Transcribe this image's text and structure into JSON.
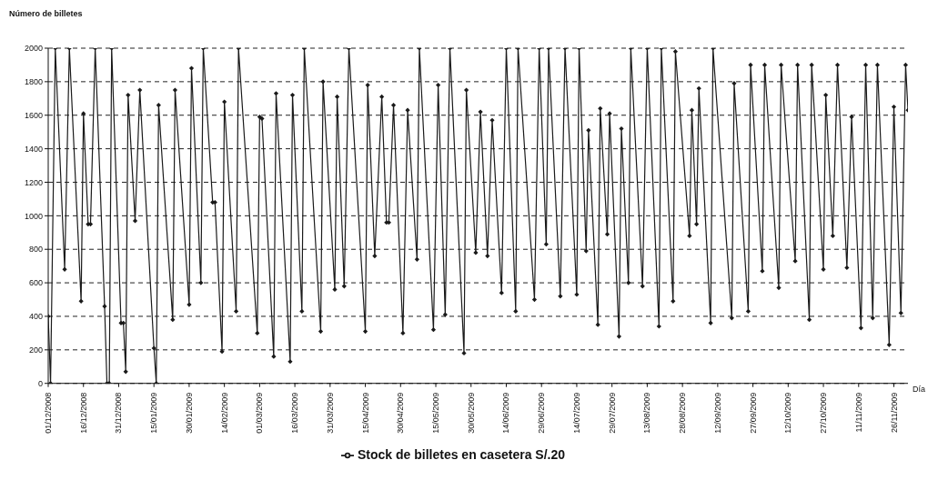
{
  "chart_data": {
    "type": "line",
    "xlabel": "Día",
    "ylabel": "Número de billetes",
    "x": [
      "2008-12-01",
      "2008-12-02",
      "2008-12-04",
      "2008-12-08",
      "2008-12-10",
      "2008-12-15",
      "2008-12-16",
      "2008-12-18",
      "2008-12-19",
      "2008-12-21",
      "2008-12-25",
      "2008-12-26",
      "2008-12-27",
      "2008-12-28",
      "2009-01-01",
      "2009-01-02",
      "2009-01-03",
      "2009-01-04",
      "2009-01-07",
      "2009-01-09",
      "2009-01-15",
      "2009-01-16",
      "2009-01-17",
      "2009-01-23",
      "2009-01-24",
      "2009-01-30",
      "2009-01-31",
      "2009-02-04",
      "2009-02-05",
      "2009-02-09",
      "2009-02-10",
      "2009-02-13",
      "2009-02-14",
      "2009-02-19",
      "2009-02-20",
      "2009-02-28",
      "2009-03-01",
      "2009-03-02",
      "2009-03-07",
      "2009-03-08",
      "2009-03-14",
      "2009-03-15",
      "2009-03-19",
      "2009-03-20",
      "2009-03-27",
      "2009-03-28",
      "2009-04-02",
      "2009-04-03",
      "2009-04-06",
      "2009-04-08",
      "2009-04-15",
      "2009-04-16",
      "2009-04-19",
      "2009-04-22",
      "2009-04-24",
      "2009-04-25",
      "2009-04-27",
      "2009-05-01",
      "2009-05-03",
      "2009-05-07",
      "2009-05-08",
      "2009-05-14",
      "2009-05-16",
      "2009-05-19",
      "2009-05-21",
      "2009-05-27",
      "2009-05-28",
      "2009-06-01",
      "2009-06-03",
      "2009-06-06",
      "2009-06-08",
      "2009-06-12",
      "2009-06-14",
      "2009-06-18",
      "2009-06-19",
      "2009-06-26",
      "2009-06-28",
      "2009-07-01",
      "2009-07-02",
      "2009-07-07",
      "2009-07-09",
      "2009-07-14",
      "2009-07-15",
      "2009-07-18",
      "2009-07-19",
      "2009-07-23",
      "2009-07-24",
      "2009-07-27",
      "2009-07-28",
      "2009-08-01",
      "2009-08-02",
      "2009-08-05",
      "2009-08-06",
      "2009-08-11",
      "2009-08-13",
      "2009-08-18",
      "2009-08-19",
      "2009-08-24",
      "2009-08-25",
      "2009-08-31",
      "2009-09-01",
      "2009-09-03",
      "2009-09-04",
      "2009-09-09",
      "2009-09-10",
      "2009-09-18",
      "2009-09-19",
      "2009-09-25",
      "2009-09-26",
      "2009-10-01",
      "2009-10-02",
      "2009-10-08",
      "2009-10-09",
      "2009-10-15",
      "2009-10-16",
      "2009-10-21",
      "2009-10-22",
      "2009-10-27",
      "2009-10-28",
      "2009-10-31",
      "2009-11-02",
      "2009-11-06",
      "2009-11-08",
      "2009-11-12",
      "2009-11-14",
      "2009-11-17",
      "2009-11-19",
      "2009-11-24",
      "2009-11-26",
      "2009-11-29",
      "2009-12-01",
      "2009-12-02"
    ],
    "series": [
      {
        "name": "Stock de billetes en casetera S/.20",
        "color": "#1a1a1a",
        "values": [
          400,
          0,
          2000,
          680,
          2000,
          490,
          1610,
          950,
          950,
          2000,
          460,
          0,
          0,
          2000,
          360,
          360,
          70,
          1720,
          970,
          1750,
          210,
          0,
          1660,
          380,
          1750,
          470,
          1880,
          600,
          2000,
          1080,
          1080,
          190,
          1680,
          430,
          2000,
          300,
          1590,
          1580,
          160,
          1730,
          130,
          1720,
          430,
          2000,
          310,
          1800,
          560,
          1710,
          580,
          2000,
          310,
          1780,
          760,
          1710,
          960,
          960,
          1660,
          300,
          1630,
          740,
          2000,
          320,
          1780,
          410,
          2000,
          180,
          1750,
          780,
          1620,
          760,
          1570,
          540,
          2000,
          430,
          2000,
          500,
          2000,
          830,
          2000,
          520,
          2000,
          530,
          2000,
          790,
          1510,
          350,
          1640,
          890,
          1610,
          280,
          1520,
          600,
          2000,
          580,
          2000,
          340,
          2000,
          490,
          1980,
          880,
          1630,
          950,
          1760,
          360,
          2000,
          390,
          1790,
          430,
          1900,
          670,
          1900,
          570,
          1900,
          730,
          1900,
          380,
          1900,
          680,
          1720,
          880,
          1900,
          690,
          1590,
          330,
          1900,
          390,
          1900,
          230,
          1650,
          420,
          1900,
          1630
        ]
      }
    ],
    "xlim": [
      "2008-12-01",
      "2009-12-02"
    ],
    "xticks": [
      {
        "value": "2008-12-01",
        "label": "01/12/2008"
      },
      {
        "value": "2008-12-16",
        "label": "16/12/2008"
      },
      {
        "value": "2008-12-31",
        "label": "31/12/2008"
      },
      {
        "value": "2009-01-15",
        "label": "15/01/2009"
      },
      {
        "value": "2009-01-30",
        "label": "30/01/2009"
      },
      {
        "value": "2009-02-14",
        "label": "14/02/2009"
      },
      {
        "value": "2009-03-01",
        "label": "01/03/2009"
      },
      {
        "value": "2009-03-16",
        "label": "16/03/2009"
      },
      {
        "value": "2009-03-31",
        "label": "31/03/2009"
      },
      {
        "value": "2009-04-15",
        "label": "15/04/2009"
      },
      {
        "value": "2009-04-30",
        "label": "30/04/2009"
      },
      {
        "value": "2009-05-15",
        "label": "15/05/2009"
      },
      {
        "value": "2009-05-30",
        "label": "30/05/2009"
      },
      {
        "value": "2009-06-14",
        "label": "14/06/2009"
      },
      {
        "value": "2009-06-29",
        "label": "29/06/2009"
      },
      {
        "value": "2009-07-14",
        "label": "14/07/2009"
      },
      {
        "value": "2009-07-29",
        "label": "29/07/2009"
      },
      {
        "value": "2009-08-13",
        "label": "13/08/2009"
      },
      {
        "value": "2009-08-28",
        "label": "28/08/2009"
      },
      {
        "value": "2009-09-12",
        "label": "12/09/2009"
      },
      {
        "value": "2009-09-27",
        "label": "27/09/2009"
      },
      {
        "value": "2009-10-12",
        "label": "12/10/2009"
      },
      {
        "value": "2009-10-27",
        "label": "27/10/2009"
      },
      {
        "value": "2009-11-11",
        "label": "11/11/2009"
      },
      {
        "value": "2009-11-26",
        "label": "26/11/2009"
      }
    ],
    "ylim": [
      0,
      2000
    ],
    "yticks": [
      0,
      200,
      400,
      600,
      800,
      1000,
      1200,
      1400,
      1600,
      1800,
      2000
    ],
    "grid": "y",
    "legend": "bottom",
    "marker": "diamond",
    "line_style": "solid"
  }
}
